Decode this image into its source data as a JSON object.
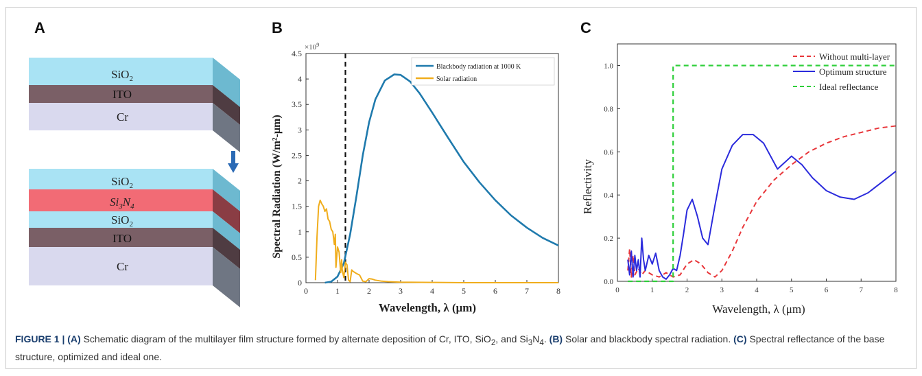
{
  "panels": {
    "a": {
      "letter": "A",
      "stack_top": {
        "layers": [
          "SiO2",
          "ITO",
          "Cr"
        ]
      },
      "stack_bottom": {
        "layers": [
          "SiO2",
          "Si3N4",
          "SiO2",
          "ITO",
          "Cr"
        ]
      },
      "colors": {
        "sio2": "#a9e3f4",
        "ito": "#7a5f66",
        "cr": "#d9d9ee",
        "si3n4": "#f26b75",
        "arrow": "#2b6ab5"
      }
    },
    "b": {
      "letter": "B",
      "exponent": "×10",
      "exponent_power": "9",
      "ylabel": "Spectral Radiation (W/m²-μm)",
      "xlabel": "Wavelength, λ (μm)",
      "legend": [
        "Blackbody radiation at 1000 K",
        "Solar radiation"
      ],
      "colors": {
        "blackbody": "#1f7aad",
        "solar": "#f0ad1c"
      }
    },
    "c": {
      "letter": "C",
      "ylabel": "Reflectivity",
      "xlabel": "Wavelength, λ (μm)",
      "legend": [
        "Without multi-layer",
        "Optimum structure",
        "Ideal reflectance"
      ],
      "colors": {
        "without": "#e8363a",
        "optimum": "#2b2bdc",
        "ideal": "#2fcf3a"
      }
    }
  },
  "chart_data": [
    {
      "type": "line",
      "x_range": [
        0,
        8
      ],
      "ylim": [
        0,
        4.5
      ],
      "y_unit_exponent": 9,
      "xticks": [
        "0",
        "1",
        "2",
        "3",
        "4",
        "5",
        "6",
        "7",
        "8"
      ],
      "yticks": [
        "0",
        "0.5",
        "1",
        "1.5",
        "2",
        "2.5",
        "3",
        "3.5",
        "4",
        "4.5"
      ],
      "vertical_marker_x": 1.25,
      "series": [
        {
          "name": "Blackbody radiation at 1000 K",
          "x": [
            0.6,
            0.8,
            1.0,
            1.2,
            1.4,
            1.6,
            1.8,
            2.0,
            2.2,
            2.5,
            2.8,
            3.0,
            3.3,
            3.6,
            4.0,
            4.5,
            5.0,
            5.5,
            6.0,
            6.5,
            7.0,
            7.5,
            8.0
          ],
          "y": [
            0.0,
            0.02,
            0.12,
            0.38,
            0.95,
            1.7,
            2.5,
            3.15,
            3.6,
            3.97,
            4.09,
            4.08,
            3.95,
            3.72,
            3.34,
            2.85,
            2.37,
            1.97,
            1.62,
            1.32,
            1.08,
            0.88,
            0.73
          ]
        },
        {
          "name": "Solar radiation",
          "x": [
            0.3,
            0.35,
            0.4,
            0.45,
            0.5,
            0.55,
            0.6,
            0.65,
            0.7,
            0.75,
            0.8,
            0.85,
            0.9,
            0.93,
            0.95,
            1.0,
            1.05,
            1.1,
            1.13,
            1.15,
            1.2,
            1.25,
            1.3,
            1.35,
            1.4,
            1.45,
            1.5,
            1.6,
            1.7,
            1.8,
            1.9,
            2.0,
            2.1,
            2.2,
            2.4,
            2.6,
            3.0,
            4.0,
            5.0,
            6.0,
            7.0,
            8.0
          ],
          "y": [
            0.05,
            0.9,
            1.5,
            1.62,
            1.55,
            1.5,
            1.4,
            1.45,
            1.25,
            1.2,
            1.05,
            1.0,
            0.75,
            0.95,
            0.3,
            0.7,
            0.6,
            0.2,
            0.45,
            0.25,
            0.1,
            0.4,
            0.35,
            0.05,
            0.02,
            0.25,
            0.22,
            0.18,
            0.15,
            0.03,
            0.02,
            0.08,
            0.07,
            0.05,
            0.03,
            0.02,
            0.01,
            0.005,
            0.0,
            0.0,
            0.0,
            0.0
          ]
        }
      ]
    },
    {
      "type": "line",
      "x_range": [
        0,
        8
      ],
      "ylim": [
        0,
        1.1
      ],
      "xticks": [
        "0",
        "1",
        "2",
        "3",
        "4",
        "5",
        "6",
        "7",
        "8"
      ],
      "yticks": [
        "0.0",
        "0.2",
        "0.4",
        "0.6",
        "0.8",
        "1.0"
      ],
      "series": [
        {
          "name": "Without multi-layer",
          "x": [
            0.3,
            0.35,
            0.4,
            0.45,
            0.5,
            0.6,
            0.7,
            0.8,
            1.0,
            1.2,
            1.4,
            1.6,
            1.8,
            2.0,
            2.2,
            2.4,
            2.6,
            2.8,
            3.0,
            3.3,
            3.6,
            4.0,
            4.5,
            5.0,
            5.5,
            6.0,
            6.5,
            7.0,
            7.5,
            8.0
          ],
          "y": [
            0.05,
            0.15,
            0.02,
            0.12,
            0.03,
            0.06,
            0.03,
            0.05,
            0.03,
            0.02,
            0.04,
            0.02,
            0.03,
            0.08,
            0.1,
            0.08,
            0.04,
            0.02,
            0.05,
            0.14,
            0.25,
            0.37,
            0.47,
            0.54,
            0.6,
            0.64,
            0.67,
            0.69,
            0.71,
            0.72
          ]
        },
        {
          "name": "Optimum structure",
          "x": [
            0.3,
            0.35,
            0.4,
            0.45,
            0.5,
            0.55,
            0.6,
            0.65,
            0.7,
            0.75,
            0.8,
            0.9,
            1.0,
            1.1,
            1.2,
            1.3,
            1.4,
            1.5,
            1.6,
            1.7,
            1.8,
            1.9,
            2.0,
            2.15,
            2.3,
            2.45,
            2.6,
            2.8,
            3.0,
            3.3,
            3.6,
            3.9,
            4.2,
            4.4,
            4.6,
            4.8,
            5.0,
            5.3,
            5.6,
            6.0,
            6.4,
            6.8,
            7.2,
            7.6,
            8.0
          ],
          "y": [
            0.1,
            0.03,
            0.14,
            0.02,
            0.12,
            0.05,
            0.1,
            0.02,
            0.2,
            0.1,
            0.05,
            0.12,
            0.08,
            0.13,
            0.05,
            0.02,
            0.01,
            0.03,
            0.06,
            0.05,
            0.12,
            0.22,
            0.33,
            0.38,
            0.3,
            0.2,
            0.17,
            0.35,
            0.52,
            0.63,
            0.68,
            0.68,
            0.64,
            0.58,
            0.52,
            0.55,
            0.58,
            0.54,
            0.48,
            0.42,
            0.39,
            0.38,
            0.41,
            0.46,
            0.51
          ]
        },
        {
          "name": "Ideal reflectance",
          "x": [
            0.3,
            1.6,
            1.6,
            8.0
          ],
          "y": [
            0.0,
            0.0,
            1.0,
            1.0
          ]
        }
      ]
    }
  ],
  "caption": {
    "fig_label": "FIGURE 1 |",
    "a_tag": "(A)",
    "a_text": " Schematic diagram of the multilayer film structure formed by alternate deposition of Cr, ITO, SiO",
    "a_text2": ", and Si",
    "a_text3": "N",
    "a_text4": ". ",
    "b_tag": "(B)",
    "b_text": " Solar and blackbody spectral radiation. ",
    "c_tag": "(C)",
    "c_text": " Spectral reflectance of the base structure, optimized and ideal one."
  }
}
